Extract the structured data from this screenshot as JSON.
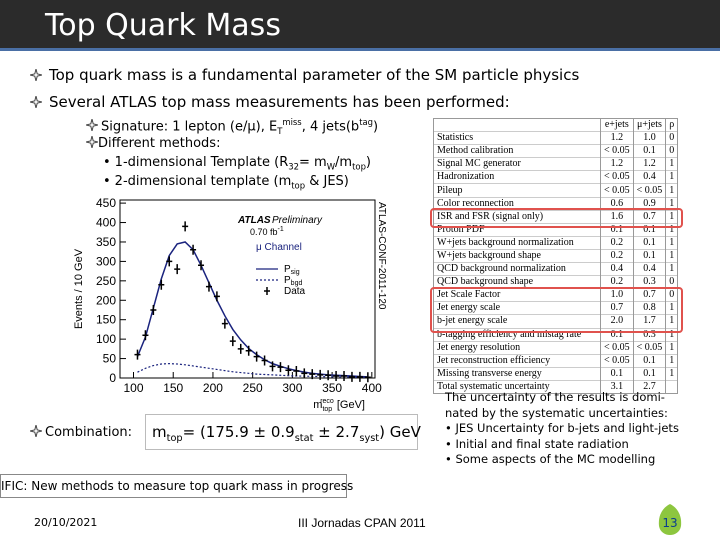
{
  "header": {
    "title": "Top Quark Mass"
  },
  "bullets": [
    "Top quark mass is a fundamental parameter of the SM particle physics",
    "Several ATLAS top mass measurements has been performed:"
  ],
  "signature": [
    "Signature: 1 lepton (e/μ), E",
    "T",
    "miss",
    ", 4 jets(b",
    "tag",
    ")"
  ],
  "methods": {
    "title": "Different methods:",
    "items": [
      [
        "1-dimensional Template (R",
        "32",
        "= m",
        "W",
        "/m",
        "top",
        ")"
      ],
      [
        "2-dimensional template (m",
        "top",
        " & JES)"
      ]
    ]
  },
  "plot": {
    "ylabel": "Events / 10 GeV",
    "xlabel": [
      "m",
      "top",
      "reco",
      " [GeV]"
    ],
    "xlim": [
      83,
      404
    ],
    "ylim": [
      0,
      458
    ],
    "xticks": [
      100,
      150,
      200,
      250,
      300,
      350,
      400
    ],
    "yticks": [
      0,
      50,
      100,
      150,
      200,
      250,
      300,
      350,
      400,
      450
    ],
    "atlas": "ATLAS",
    "prelim": "Preliminary",
    "lumi": [
      "0.70 fb",
      "-1"
    ],
    "channel": "μ Channel",
    "legend": [
      [
        "P",
        "sig"
      ],
      [
        "P",
        "bgd"
      ],
      [
        "Data"
      ]
    ],
    "conf": "ATLAS-CONF-2011-120",
    "x": [
      105,
      115,
      125,
      135,
      145,
      155,
      165,
      175,
      185,
      195,
      205,
      215,
      225,
      235,
      245,
      255,
      265,
      275,
      285,
      295,
      305,
      315,
      325,
      335,
      345,
      355,
      365,
      375,
      385,
      395
    ],
    "data": [
      60,
      110,
      175,
      240,
      300,
      280,
      390,
      330,
      290,
      235,
      210,
      140,
      95,
      75,
      70,
      55,
      45,
      30,
      28,
      20,
      18,
      12,
      10,
      8,
      7,
      5,
      5,
      3,
      3,
      2
    ],
    "fit": [
      55,
      105,
      180,
      255,
      315,
      345,
      350,
      330,
      290,
      245,
      200,
      160,
      125,
      98,
      76,
      60,
      47,
      37,
      30,
      24,
      19,
      15,
      12,
      10,
      8,
      7,
      6,
      5,
      4,
      3
    ],
    "background": [
      15,
      25,
      32,
      36,
      37,
      36,
      34,
      31,
      28,
      25,
      22,
      19,
      16,
      14,
      12,
      10,
      9,
      8,
      7,
      6,
      5,
      5,
      4,
      4,
      3,
      3,
      3,
      2,
      2,
      2
    ]
  },
  "table": {
    "header": [
      "e+jets",
      "μ+jets",
      "ρ"
    ],
    "rows": [
      [
        "Statistics",
        "1.2",
        "1.0",
        "0"
      ],
      [
        "Method calibration",
        "< 0.05",
        "0.1",
        "0"
      ],
      [
        "Signal MC generator",
        "1.2",
        "1.2",
        "1"
      ],
      [
        "Hadronization",
        "< 0.05",
        "0.4",
        "1"
      ],
      [
        "Pileup",
        "< 0.05",
        "< 0.05",
        "1"
      ],
      [
        "Color reconnection",
        "0.6",
        "0.9",
        "1"
      ],
      [
        "ISR and FSR (signal only)",
        "1.6",
        "0.7",
        "1"
      ],
      [
        "Proton PDF",
        "0.1",
        "0.1",
        "1"
      ],
      [
        "W+jets background normalization",
        "0.2",
        "0.1",
        "1"
      ],
      [
        "W+jets background shape",
        "0.2",
        "0.1",
        "1"
      ],
      [
        "QCD background normalization",
        "0.4",
        "0.4",
        "1"
      ],
      [
        "QCD background shape",
        "0.2",
        "0.3",
        "0"
      ],
      [
        "Jet Scale Factor",
        "1.0",
        "0.7",
        "0"
      ],
      [
        "Jet energy scale",
        "0.7",
        "0.8",
        "1"
      ],
      [
        "b-jet energy scale",
        "2.0",
        "1.7",
        "1"
      ],
      [
        "b-tagging efficiency and mistag rate",
        "0.1",
        "0.3",
        "1"
      ],
      [
        "Jet energy resolution",
        "< 0.05",
        "< 0.05",
        "1"
      ],
      [
        "Jet reconstruction efficiency",
        "< 0.05",
        "0.1",
        "1"
      ],
      [
        "Missing transverse energy",
        "0.1",
        "0.1",
        "1"
      ],
      [
        "Total systematic uncertainty",
        "3.1",
        "2.7"
      ]
    ]
  },
  "combination": {
    "label": "Combination:",
    "formula": [
      "m",
      "top",
      "= (175.9 ± 0.9",
      "stat",
      " ± 2.7",
      "syst",
      ") GeV"
    ]
  },
  "note": [
    "The uncertainty of the results is domi-",
    "nated by the systematic uncertainties:",
    "• JES Uncertainty for b-jets and light-jets",
    "• Initial and final state radiation",
    "• Some aspects of the MC modelling"
  ],
  "banner": "IFIC: New methods to measure top quark mass in progress",
  "footer": {
    "date": "20/10/2021",
    "event": "III Jornadas CPAN 2011",
    "page": "13"
  }
}
